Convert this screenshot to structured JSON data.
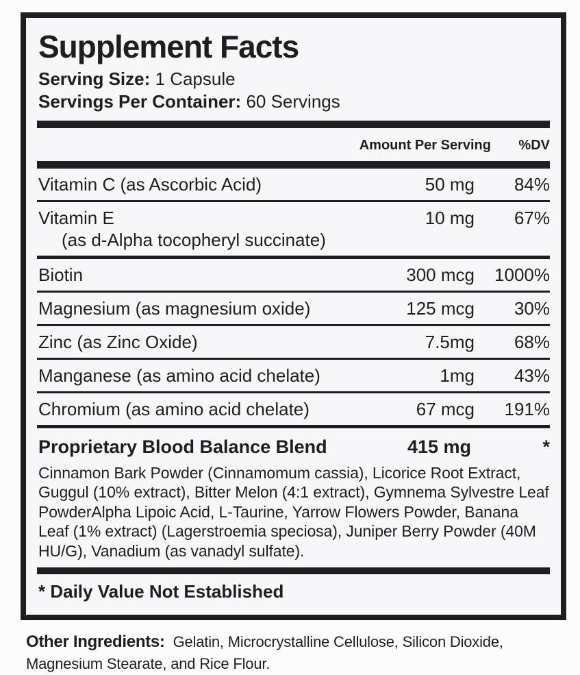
{
  "colors": {
    "ink": "#1e1d1f",
    "panel_bg": "#f7f6f8",
    "page_bg": "#fcfcfd"
  },
  "supplement_facts": {
    "title": "Supplement Facts",
    "serving_size": {
      "label": "Serving Size:",
      "value": "1 Capsule"
    },
    "servings_per_container": {
      "label": "Servings Per Container:",
      "value": "60 Servings"
    },
    "columns": {
      "amount_header": "Amount Per Serving",
      "dv_header": "%DV"
    },
    "nutrients": [
      {
        "name": "Vitamin C (as Ascorbic Acid)",
        "amount": "50 mg",
        "dv": "84%"
      },
      {
        "name": "Vitamin E",
        "name_line2": "(as d-Alpha tocopheryl succinate)",
        "amount": "10 mg",
        "dv": "67%"
      },
      {
        "name": "Biotin",
        "amount": "300 mcg",
        "dv": "1000%"
      },
      {
        "name": "Magnesium (as magnesium oxide)",
        "amount": "125 mcg",
        "dv": "30%"
      },
      {
        "name": "Zinc (as Zinc Oxide)",
        "amount": "7.5mg",
        "dv": "68%"
      },
      {
        "name": "Manganese (as amino acid chelate)",
        "amount": "1mg",
        "dv": "43%"
      },
      {
        "name": "Chromium (as amino acid chelate)",
        "amount": "67 mcg",
        "dv": "191%"
      }
    ],
    "proprietary_blend": {
      "name": "Proprietary Blood Balance Blend",
      "amount": "415 mg",
      "dv": "*",
      "ingredients": "Cinnamon Bark Powder (Cinnamomum cassia), Licorice Root Extract, Guggul (10% extract), Bitter Melon (4:1 extract), Gymnema Sylvestre Leaf PowderAlpha Lipoic Acid, L-Taurine, Yarrow Flowers Powder, Banana Leaf (1% extract) (Lagerstroemia speciosa), Juniper Berry Powder (40M HU/G), Vanadium (as vanadyl sulfate)."
    },
    "footnote": "* Daily Value Not Established",
    "other_ingredients": {
      "label": "Other Ingredients:",
      "value": "Gelatin, Microcrystalline Cellulose, Silicon Dioxide, Magnesium Stearate, and Rice Flour."
    }
  }
}
